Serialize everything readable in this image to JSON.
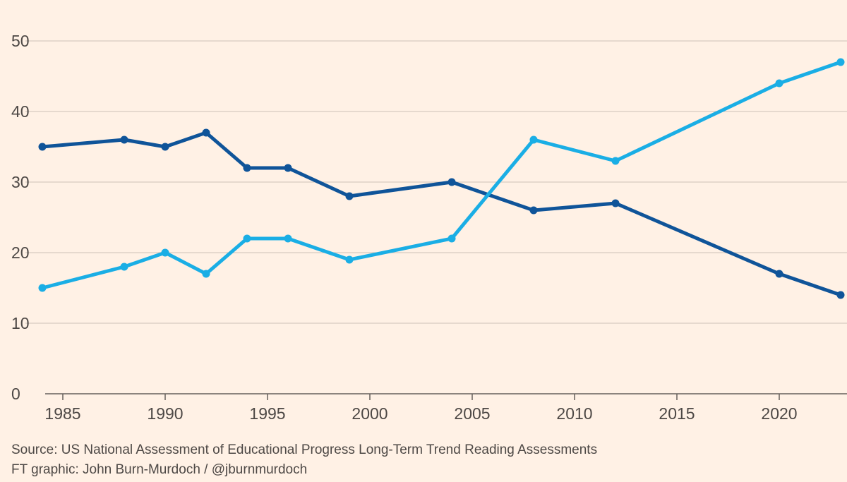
{
  "chart_data": {
    "type": "line",
    "title": "",
    "xlabel": "",
    "ylabel": "",
    "xlim": [
      1984,
      2023
    ],
    "ylim": [
      0,
      50
    ],
    "y_ticks": [
      0,
      10,
      20,
      30,
      40,
      50
    ],
    "x_ticks": [
      1985,
      1990,
      1995,
      2000,
      2005,
      2010,
      2015,
      2020
    ],
    "grid": true,
    "legend": "none",
    "series": [
      {
        "name": "dark-blue",
        "color": "#0f5499",
        "x": [
          1984,
          1988,
          1990,
          1992,
          1994,
          1996,
          1999,
          2004,
          2008,
          2012,
          2020,
          2023
        ],
        "y": [
          35,
          36,
          35,
          37,
          32,
          32,
          28,
          30,
          26,
          27,
          17,
          14
        ]
      },
      {
        "name": "light-blue",
        "color": "#1aaee5",
        "x": [
          1984,
          1988,
          1990,
          1992,
          1994,
          1996,
          1999,
          2004,
          2008,
          2012,
          2020,
          2023
        ],
        "y": [
          15,
          18,
          20,
          17,
          22,
          22,
          19,
          22,
          36,
          33,
          44,
          47
        ]
      }
    ]
  },
  "footer": {
    "source": "Source: US National Assessment of Educational Progress Long-Term Trend Reading Assessments",
    "credit": "FT graphic: John Burn-Murdoch / @jburnmurdoch"
  }
}
